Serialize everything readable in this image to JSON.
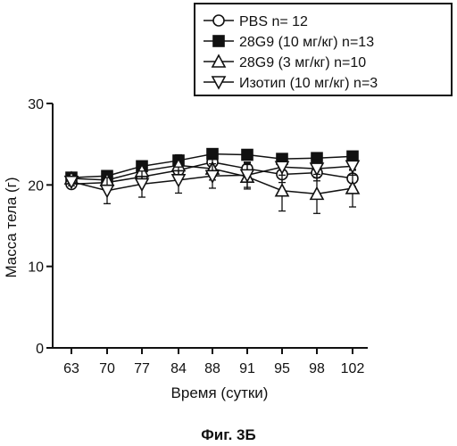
{
  "chart_data": {
    "type": "line",
    "title": "",
    "caption": "Фиг. 3Б",
    "xlabel": "Время (сутки)",
    "ylabel": "Масса тела (г)",
    "ylim": [
      0,
      30
    ],
    "yticks": [
      0,
      10,
      20,
      30
    ],
    "categories": [
      "63",
      "70",
      "77",
      "84",
      "88",
      "91",
      "95",
      "98",
      "102"
    ],
    "grid": false,
    "legend_position": "top-right",
    "series": [
      {
        "name": "PBS n= 12",
        "marker": "circle-open",
        "values": [
          20.1,
          20.3,
          21.0,
          21.8,
          22.8,
          22.0,
          21.3,
          21.5,
          20.8
        ],
        "errors": [
          0.4,
          0.5,
          0.8,
          0.7,
          0.7,
          0.8,
          1.0,
          1.0,
          1.0
        ]
      },
      {
        "name": "28G9 (10 мг/кг) n=13",
        "marker": "square-filled",
        "values": [
          20.9,
          21.1,
          22.3,
          23.0,
          23.8,
          23.7,
          23.2,
          23.3,
          23.5
        ],
        "errors": [
          0.3,
          0.3,
          0.4,
          0.4,
          0.4,
          0.5,
          0.5,
          0.5,
          0.5
        ]
      },
      {
        "name": "28G9 (3 мг/кг) n=10",
        "marker": "triangle-up-open",
        "values": [
          20.8,
          20.6,
          21.7,
          22.4,
          22.0,
          21.0,
          19.3,
          18.9,
          19.6
        ],
        "errors": [
          0.6,
          1.0,
          1.2,
          1.3,
          1.4,
          1.5,
          2.5,
          2.4,
          2.3
        ]
      },
      {
        "name": "Изотип (10 мг/кг) n=3",
        "marker": "triangle-down-open",
        "values": [
          20.4,
          19.3,
          20.1,
          20.6,
          21.1,
          21.2,
          22.2,
          22.0,
          22.3
        ],
        "errors": [
          0.5,
          1.6,
          1.6,
          1.6,
          1.5,
          1.5,
          1.0,
          1.1,
          1.1
        ]
      }
    ]
  }
}
